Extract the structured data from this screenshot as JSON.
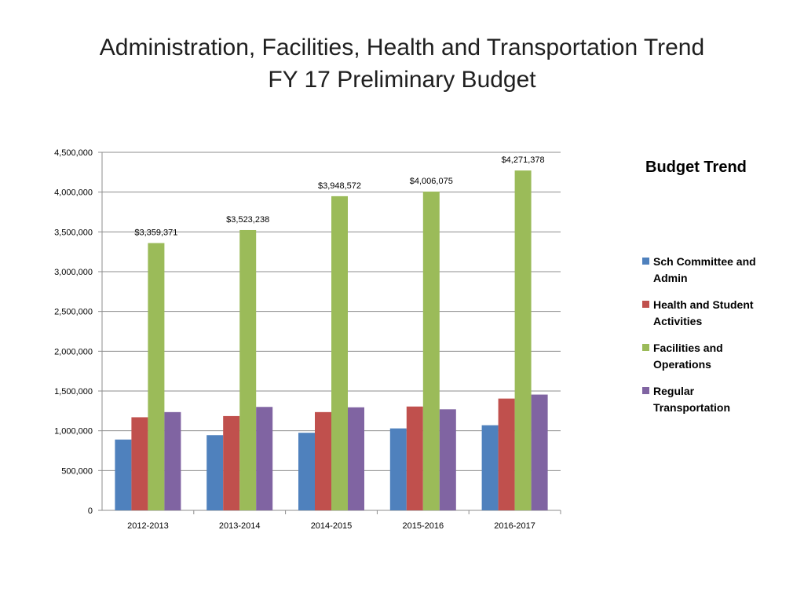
{
  "title": {
    "line1": "Administration, Facilities, Health and Transportation Trend",
    "line2": "FY 17 Preliminary  Budget"
  },
  "legend": {
    "title": "Budget Trend",
    "items": [
      {
        "label": "Sch Committee and Admin",
        "color": "#4f81bd"
      },
      {
        "label": "Health and Student Activities",
        "color": "#c0504d"
      },
      {
        "label": "Facilities and Operations",
        "color": "#9bbb59"
      },
      {
        "label": "Regular Transportation",
        "color": "#8064a2"
      }
    ]
  },
  "chart_data": {
    "type": "bar",
    "title": "Budget Trend",
    "categories": [
      "2012-2013",
      "2013-2014",
      "2014-2015",
      "2015-2016",
      "2016-2017"
    ],
    "series": [
      {
        "name": "Sch Committee and Admin",
        "color": "#4f81bd",
        "values": [
          890000,
          945000,
          975000,
          1030000,
          1070000
        ]
      },
      {
        "name": "Health and Student Activities",
        "color": "#c0504d",
        "values": [
          1170000,
          1185000,
          1235000,
          1305000,
          1405000
        ]
      },
      {
        "name": "Facilities and Operations",
        "color": "#9bbb59",
        "values": [
          3359371,
          3523238,
          3948572,
          4006075,
          4271378
        ]
      },
      {
        "name": "Regular Transportation",
        "color": "#8064a2",
        "values": [
          1235000,
          1300000,
          1295000,
          1270000,
          1455000
        ]
      }
    ],
    "data_labels": [
      "$3,359,371",
      "$3,523,238",
      "$3,948,572",
      "$4,006,075",
      "$4,271,378"
    ],
    "y_ticks": [
      "0",
      "500,000",
      "1,000,000",
      "1,500,000",
      "2,000,000",
      "2,500,000",
      "3,000,000",
      "3,500,000",
      "4,000,000",
      "4,500,000"
    ],
    "ylim": [
      0,
      4500000
    ],
    "grid": true,
    "legend_position": "right"
  }
}
